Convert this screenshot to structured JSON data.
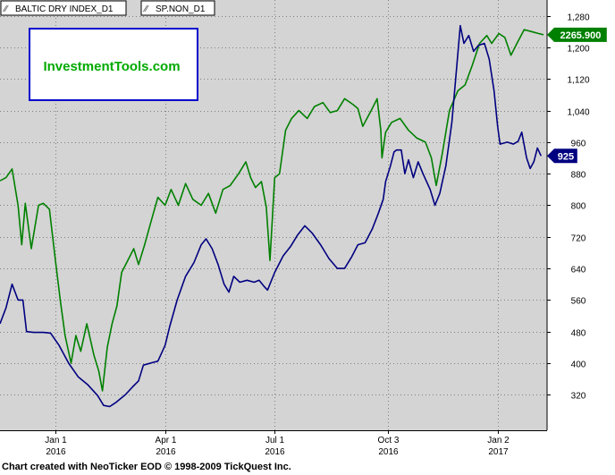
{
  "footer_text": "Chart created with NeoTicker EOD © 1998-2009 TickQuest Inc.",
  "colors": {
    "plot_bg": "#d4d4d4",
    "page_bg": "#ffffff",
    "grid": "#808080",
    "baltic_line": "#000080",
    "sp_line": "#008000",
    "logo_text": "#00aa00",
    "logo_border": "#0000cc"
  },
  "logo": {
    "text": "InvestmentTools.com"
  },
  "chart_data": {
    "type": "line",
    "title": "",
    "xlabel": "",
    "ylabel": "",
    "ylim": [
      230,
      1320
    ],
    "xlim": [
      "2015-11-16",
      "2017-02-12"
    ],
    "grid": true,
    "legend_position": "top-left",
    "x_ticks": [
      {
        "date": "2016-01-01",
        "month": "Jan 1",
        "year": "2016"
      },
      {
        "date": "2016-04-01",
        "month": "Apr 1",
        "year": "2016"
      },
      {
        "date": "2016-07-01",
        "month": "Jul 1",
        "year": "2016"
      },
      {
        "date": "2016-10-03",
        "month": "Oct 3",
        "year": "2016"
      },
      {
        "date": "2017-01-02",
        "month": "Jan 2",
        "year": "2017"
      }
    ],
    "y_ticks": [
      320,
      400,
      480,
      560,
      640,
      720,
      800,
      880,
      960,
      1040,
      1120,
      1200,
      1280
    ],
    "last_value_badges": [
      {
        "series": "SP.NON_D1",
        "label": "2265.900",
        "value": 1232
      },
      {
        "series": "BALTIC DRY INDEX_D1",
        "label": "925",
        "value": 925
      }
    ],
    "series": [
      {
        "name": "BALTIC DRY INDEX_D1",
        "color": "#000080",
        "points": [
          [
            "2015-11-16",
            500
          ],
          [
            "2015-11-21",
            540
          ],
          [
            "2015-11-26",
            600
          ],
          [
            "2015-12-01",
            560
          ],
          [
            "2015-12-05",
            560
          ],
          [
            "2015-12-08",
            480
          ],
          [
            "2015-12-14",
            478
          ],
          [
            "2015-12-22",
            478
          ],
          [
            "2015-12-28",
            476
          ],
          [
            "2016-01-04",
            445
          ],
          [
            "2016-01-12",
            400
          ],
          [
            "2016-01-20",
            365
          ],
          [
            "2016-01-28",
            345
          ],
          [
            "2016-02-05",
            318
          ],
          [
            "2016-02-10",
            293
          ],
          [
            "2016-02-15",
            290
          ],
          [
            "2016-02-20",
            300
          ],
          [
            "2016-02-28",
            320
          ],
          [
            "2016-03-05",
            340
          ],
          [
            "2016-03-10",
            355
          ],
          [
            "2016-03-14",
            395
          ],
          [
            "2016-03-22",
            402
          ],
          [
            "2016-03-26",
            405
          ],
          [
            "2016-04-01",
            445
          ],
          [
            "2016-04-05",
            495
          ],
          [
            "2016-04-11",
            560
          ],
          [
            "2016-04-18",
            620
          ],
          [
            "2016-04-25",
            655
          ],
          [
            "2016-05-01",
            700
          ],
          [
            "2016-05-05",
            715
          ],
          [
            "2016-05-10",
            690
          ],
          [
            "2016-05-15",
            650
          ],
          [
            "2016-05-20",
            600
          ],
          [
            "2016-05-24",
            580
          ],
          [
            "2016-05-28",
            620
          ],
          [
            "2016-06-02",
            605
          ],
          [
            "2016-06-08",
            610
          ],
          [
            "2016-06-14",
            605
          ],
          [
            "2016-06-18",
            610
          ],
          [
            "2016-06-22",
            595
          ],
          [
            "2016-06-25",
            585
          ],
          [
            "2016-07-01",
            630
          ],
          [
            "2016-07-08",
            672
          ],
          [
            "2016-07-14",
            695
          ],
          [
            "2016-07-20",
            725
          ],
          [
            "2016-07-26",
            748
          ],
          [
            "2016-08-01",
            730
          ],
          [
            "2016-08-08",
            700
          ],
          [
            "2016-08-15",
            665
          ],
          [
            "2016-08-22",
            640
          ],
          [
            "2016-08-28",
            640
          ],
          [
            "2016-09-03",
            670
          ],
          [
            "2016-09-08",
            700
          ],
          [
            "2016-09-14",
            705
          ],
          [
            "2016-09-20",
            740
          ],
          [
            "2016-09-25",
            780
          ],
          [
            "2016-09-29",
            815
          ],
          [
            "2016-10-01",
            860
          ],
          [
            "2016-10-05",
            900
          ],
          [
            "2016-10-08",
            935
          ],
          [
            "2016-10-10",
            940
          ],
          [
            "2016-10-14",
            940
          ],
          [
            "2016-10-17",
            880
          ],
          [
            "2016-10-20",
            915
          ],
          [
            "2016-10-24",
            870
          ],
          [
            "2016-10-28",
            910
          ],
          [
            "2016-11-01",
            880
          ],
          [
            "2016-11-07",
            840
          ],
          [
            "2016-11-11",
            800
          ],
          [
            "2016-11-15",
            830
          ],
          [
            "2016-11-20",
            900
          ],
          [
            "2016-11-25",
            1010
          ],
          [
            "2016-11-29",
            1150
          ],
          [
            "2016-12-02",
            1255
          ],
          [
            "2016-12-05",
            1210
          ],
          [
            "2016-12-09",
            1230
          ],
          [
            "2016-12-13",
            1190
          ],
          [
            "2016-12-17",
            1205
          ],
          [
            "2016-12-22",
            1210
          ],
          [
            "2016-12-26",
            1170
          ],
          [
            "2016-12-30",
            1090
          ],
          [
            "2017-01-02",
            1000
          ],
          [
            "2017-01-04",
            955
          ],
          [
            "2017-01-10",
            960
          ],
          [
            "2017-01-15",
            955
          ],
          [
            "2017-01-19",
            962
          ],
          [
            "2017-01-22",
            985
          ],
          [
            "2017-01-26",
            920
          ],
          [
            "2017-01-29",
            893
          ],
          [
            "2017-02-01",
            910
          ],
          [
            "2017-02-04",
            945
          ],
          [
            "2017-02-07",
            925
          ]
        ]
      },
      {
        "name": "SP.NON_D1",
        "color": "#008000",
        "points": [
          [
            "2015-11-16",
            862
          ],
          [
            "2015-11-21",
            870
          ],
          [
            "2015-11-26",
            892
          ],
          [
            "2015-12-01",
            800
          ],
          [
            "2015-12-04",
            700
          ],
          [
            "2015-12-07",
            805
          ],
          [
            "2015-12-12",
            690
          ],
          [
            "2015-12-18",
            800
          ],
          [
            "2015-12-22",
            805
          ],
          [
            "2015-12-27",
            790
          ],
          [
            "2016-01-01",
            660
          ],
          [
            "2016-01-05",
            560
          ],
          [
            "2016-01-09",
            470
          ],
          [
            "2016-01-14",
            400
          ],
          [
            "2016-01-18",
            470
          ],
          [
            "2016-01-22",
            430
          ],
          [
            "2016-01-27",
            500
          ],
          [
            "2016-02-02",
            420
          ],
          [
            "2016-02-06",
            380
          ],
          [
            "2016-02-09",
            330
          ],
          [
            "2016-02-13",
            440
          ],
          [
            "2016-02-17",
            500
          ],
          [
            "2016-02-21",
            545
          ],
          [
            "2016-02-25",
            630
          ],
          [
            "2016-03-01",
            660
          ],
          [
            "2016-03-06",
            690
          ],
          [
            "2016-03-10",
            650
          ],
          [
            "2016-03-15",
            700
          ],
          [
            "2016-03-20",
            755
          ],
          [
            "2016-03-26",
            820
          ],
          [
            "2016-04-01",
            800
          ],
          [
            "2016-04-06",
            840
          ],
          [
            "2016-04-12",
            800
          ],
          [
            "2016-04-18",
            855
          ],
          [
            "2016-04-24",
            815
          ],
          [
            "2016-05-01",
            800
          ],
          [
            "2016-05-07",
            830
          ],
          [
            "2016-05-13",
            780
          ],
          [
            "2016-05-19",
            840
          ],
          [
            "2016-05-25",
            850
          ],
          [
            "2016-06-01",
            880
          ],
          [
            "2016-06-07",
            910
          ],
          [
            "2016-06-11",
            870
          ],
          [
            "2016-06-15",
            845
          ],
          [
            "2016-06-20",
            860
          ],
          [
            "2016-06-24",
            795
          ],
          [
            "2016-06-27",
            660
          ],
          [
            "2016-07-01",
            870
          ],
          [
            "2016-07-05",
            880
          ],
          [
            "2016-07-10",
            990
          ],
          [
            "2016-07-15",
            1020
          ],
          [
            "2016-07-21",
            1040
          ],
          [
            "2016-07-28",
            1020
          ],
          [
            "2016-08-03",
            1050
          ],
          [
            "2016-08-10",
            1060
          ],
          [
            "2016-08-16",
            1035
          ],
          [
            "2016-08-22",
            1040
          ],
          [
            "2016-08-28",
            1070
          ],
          [
            "2016-09-04",
            1055
          ],
          [
            "2016-09-08",
            1045
          ],
          [
            "2016-09-12",
            1000
          ],
          [
            "2016-09-19",
            1040
          ],
          [
            "2016-09-24",
            1070
          ],
          [
            "2016-09-27",
            990
          ],
          [
            "2016-09-28",
            920
          ],
          [
            "2016-10-01",
            985
          ],
          [
            "2016-10-06",
            1010
          ],
          [
            "2016-10-13",
            1020
          ],
          [
            "2016-10-20",
            990
          ],
          [
            "2016-10-27",
            970
          ],
          [
            "2016-11-03",
            960
          ],
          [
            "2016-11-08",
            920
          ],
          [
            "2016-11-12",
            850
          ],
          [
            "2016-11-17",
            930
          ],
          [
            "2016-11-23",
            1040
          ],
          [
            "2016-11-30",
            1090
          ],
          [
            "2016-12-06",
            1105
          ],
          [
            "2016-12-12",
            1155
          ],
          [
            "2016-12-18",
            1210
          ],
          [
            "2016-12-24",
            1230
          ],
          [
            "2016-12-28",
            1210
          ],
          [
            "2017-01-03",
            1235
          ],
          [
            "2017-01-08",
            1225
          ],
          [
            "2017-01-13",
            1180
          ],
          [
            "2017-01-18",
            1210
          ],
          [
            "2017-01-24",
            1245
          ],
          [
            "2017-01-30",
            1240
          ],
          [
            "2017-02-05",
            1235
          ],
          [
            "2017-02-09",
            1232
          ]
        ]
      }
    ]
  }
}
